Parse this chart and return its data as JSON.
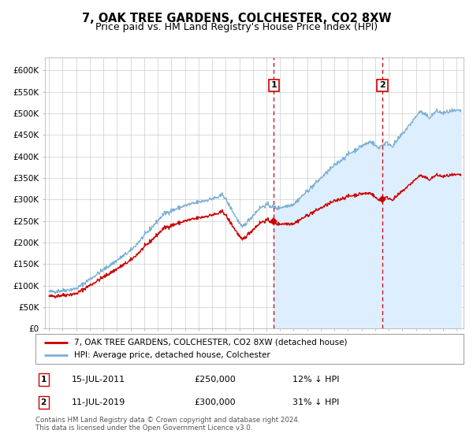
{
  "title": "7, OAK TREE GARDENS, COLCHESTER, CO2 8XW",
  "subtitle": "Price paid vs. HM Land Registry's House Price Index (HPI)",
  "ylim": [
    0,
    620000
  ],
  "yticks": [
    0,
    50000,
    100000,
    150000,
    200000,
    250000,
    300000,
    350000,
    400000,
    450000,
    500000,
    550000,
    600000
  ],
  "ytick_labels": [
    "£0",
    "£50K",
    "£100K",
    "£150K",
    "£200K",
    "£250K",
    "£300K",
    "£350K",
    "£400K",
    "£450K",
    "£500K",
    "£550K",
    "£600K"
  ],
  "hpi_color": "#7bafd4",
  "hpi_fill_color": "#ddeeff",
  "price_color": "#cc0000",
  "sale1_date_label": "15-JUL-2011",
  "sale1_price": 250000,
  "sale1_pct": "12% ↓ HPI",
  "sale1_x_year": 2011.54,
  "sale2_date_label": "11-JUL-2019",
  "sale2_price": 300000,
  "sale2_pct": "31% ↓ HPI",
  "sale2_x_year": 2019.53,
  "legend_label_red": "7, OAK TREE GARDENS, COLCHESTER, CO2 8XW (detached house)",
  "legend_label_blue": "HPI: Average price, detached house, Colchester",
  "footnote": "Contains HM Land Registry data © Crown copyright and database right 2024.\nThis data is licensed under the Open Government Licence v3.0.",
  "background_color": "#ffffff",
  "grid_color": "#cccccc",
  "title_fontsize": 10.5,
  "subtitle_fontsize": 9,
  "tick_fontsize": 7.5,
  "xmin": 1994.7,
  "xmax": 2025.5
}
